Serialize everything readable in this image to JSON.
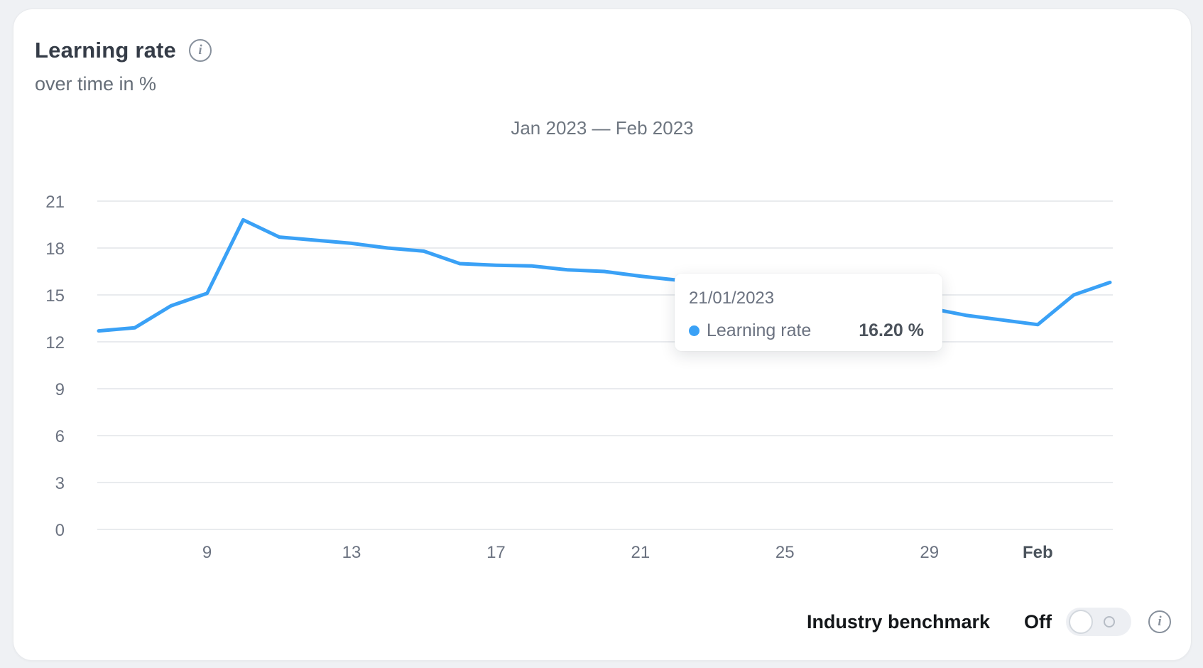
{
  "card": {
    "title": "Learning rate",
    "subtitle": "over time in %"
  },
  "icons": {
    "title_info": "info-circle-icon",
    "benchmark_info": "info-circle-icon",
    "info_glyph": "i"
  },
  "chart_data": {
    "type": "line",
    "title": "Jan 2023 — Feb 2023",
    "xlabel": "",
    "ylabel": "%",
    "ylim": [
      0,
      21
    ],
    "grid": "horizontal",
    "y_ticks": [
      0,
      3,
      6,
      9,
      12,
      15,
      18,
      21
    ],
    "x_ticks": [
      {
        "label": "9",
        "index": 3,
        "bold": false
      },
      {
        "label": "13",
        "index": 7,
        "bold": false
      },
      {
        "label": "17",
        "index": 11,
        "bold": false
      },
      {
        "label": "21",
        "index": 15,
        "bold": false
      },
      {
        "label": "25",
        "index": 19,
        "bold": false
      },
      {
        "label": "29",
        "index": 23,
        "bold": false
      },
      {
        "label": "Feb",
        "index": 26,
        "bold": true
      }
    ],
    "series": [
      {
        "name": "Learning rate",
        "color": "#3aa1f6",
        "x": [
          "2023-01-06",
          "2023-01-07",
          "2023-01-08",
          "2023-01-09",
          "2023-01-10",
          "2023-01-11",
          "2023-01-12",
          "2023-01-13",
          "2023-01-14",
          "2023-01-15",
          "2023-01-16",
          "2023-01-17",
          "2023-01-18",
          "2023-01-19",
          "2023-01-20",
          "2023-01-21",
          "2023-01-22",
          "2023-01-23",
          "2023-01-24",
          "2023-01-25",
          "2023-01-26",
          "2023-01-27",
          "2023-01-28",
          "2023-01-29",
          "2023-01-30",
          "2023-01-31",
          "2023-02-01",
          "2023-02-02",
          "2023-02-03"
        ],
        "values": [
          12.7,
          12.9,
          14.3,
          15.1,
          19.8,
          18.7,
          18.5,
          18.3,
          18.0,
          17.8,
          17.0,
          16.9,
          16.85,
          16.6,
          16.5,
          16.2,
          15.95,
          15.7,
          15.45,
          15.2,
          14.9,
          14.65,
          14.4,
          14.15,
          13.7,
          13.4,
          13.1,
          15.0,
          15.8
        ]
      }
    ],
    "estimated_behind_tooltip": [
      "2023-01-22",
      "2023-01-29"
    ]
  },
  "tooltip": {
    "date": "21/01/2023",
    "series_label": "Learning rate",
    "value": "16.20 %",
    "dot_color": "#3aa1f6"
  },
  "controls": {
    "benchmark_label": "Industry benchmark",
    "toggle_state": "Off"
  },
  "colors": {
    "line": "#3aa1f6",
    "grid": "#e9ebee",
    "tick_text": "#6b7280",
    "tick_text_bold": "#4b535c",
    "page_background": "#eff1f4",
    "card_background": "#ffffff"
  }
}
